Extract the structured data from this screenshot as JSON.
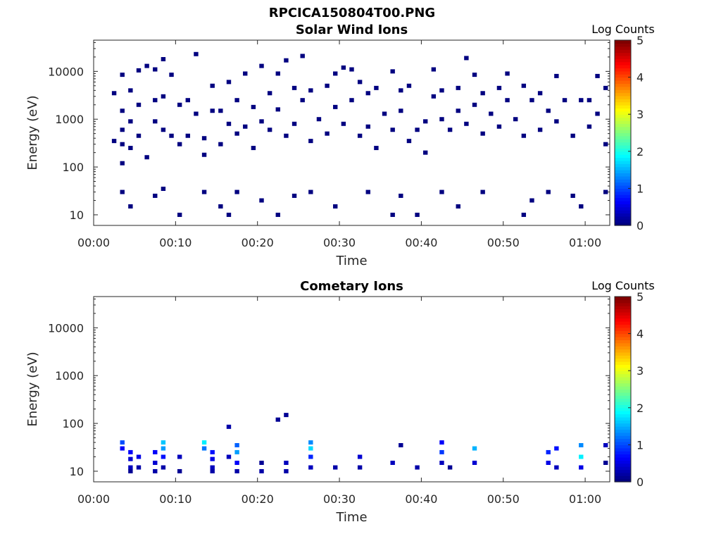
{
  "figure_title": "RPCICA150804T00.PNG",
  "chart_data": [
    {
      "type": "heatmap",
      "title": "Solar Wind Ions",
      "xlabel": "Time",
      "ylabel": "Energy (eV)",
      "y_scale": "log",
      "xlim": [
        "00:00",
        "01:03"
      ],
      "ylim": [
        6,
        45000
      ],
      "x_tick_labels": [
        "00:00",
        "00:10",
        "00:20",
        "00:30",
        "00:40",
        "00:50",
        "01:00"
      ],
      "y_tick_labels": [
        "10",
        "100",
        "1000",
        "10000"
      ],
      "colorbar": {
        "label": "Log Counts",
        "range": [
          0,
          5
        ],
        "tick_labels": [
          "0",
          "1",
          "2",
          "3",
          "4",
          "5"
        ],
        "colormap": "jet"
      },
      "grid": false,
      "points_note": "sparse single-count pixels (log counts ~0) scattered across all energies",
      "points": [
        {
          "t": "00:02",
          "e": 3500,
          "c": 0
        },
        {
          "t": "00:02",
          "e": 350,
          "c": 0
        },
        {
          "t": "00:03",
          "e": 8500,
          "c": 0
        },
        {
          "t": "00:03",
          "e": 1500,
          "c": 0
        },
        {
          "t": "00:03",
          "e": 600,
          "c": 0
        },
        {
          "t": "00:03",
          "e": 300,
          "c": 0
        },
        {
          "t": "00:03",
          "e": 120,
          "c": 0
        },
        {
          "t": "00:04",
          "e": 4000,
          "c": 0
        },
        {
          "t": "00:04",
          "e": 900,
          "c": 0
        },
        {
          "t": "00:04",
          "e": 250,
          "c": 0
        },
        {
          "t": "00:05",
          "e": 10500,
          "c": 0
        },
        {
          "t": "00:05",
          "e": 2000,
          "c": 0
        },
        {
          "t": "00:05",
          "e": 450,
          "c": 0
        },
        {
          "t": "00:06",
          "e": 13000,
          "c": 0
        },
        {
          "t": "00:06",
          "e": 160,
          "c": 0
        },
        {
          "t": "00:07",
          "e": 11000,
          "c": 0
        },
        {
          "t": "00:07",
          "e": 2500,
          "c": 0
        },
        {
          "t": "00:07",
          "e": 900,
          "c": 0
        },
        {
          "t": "00:08",
          "e": 18000,
          "c": 0
        },
        {
          "t": "00:08",
          "e": 3000,
          "c": 0
        },
        {
          "t": "00:08",
          "e": 600,
          "c": 0
        },
        {
          "t": "00:09",
          "e": 8500,
          "c": 0
        },
        {
          "t": "00:09",
          "e": 450,
          "c": 0
        },
        {
          "t": "00:10",
          "e": 2000,
          "c": 0
        },
        {
          "t": "00:10",
          "e": 300,
          "c": 0
        },
        {
          "t": "00:11",
          "e": 450,
          "c": 0
        },
        {
          "t": "00:11",
          "e": 2500,
          "c": 0
        },
        {
          "t": "00:12",
          "e": 23000,
          "c": 0
        },
        {
          "t": "00:12",
          "e": 1300,
          "c": 0
        },
        {
          "t": "00:13",
          "e": 400,
          "c": 0
        },
        {
          "t": "00:13",
          "e": 180,
          "c": 0
        },
        {
          "t": "00:14",
          "e": 5000,
          "c": 0
        },
        {
          "t": "00:14",
          "e": 1500,
          "c": 0
        },
        {
          "t": "00:15",
          "e": 1500,
          "c": 0
        },
        {
          "t": "00:15",
          "e": 300,
          "c": 0
        },
        {
          "t": "00:16",
          "e": 6000,
          "c": 0
        },
        {
          "t": "00:16",
          "e": 800,
          "c": 0
        },
        {
          "t": "00:17",
          "e": 2500,
          "c": 0
        },
        {
          "t": "00:17",
          "e": 500,
          "c": 0
        },
        {
          "t": "00:18",
          "e": 9000,
          "c": 0
        },
        {
          "t": "00:18",
          "e": 700,
          "c": 0
        },
        {
          "t": "00:19",
          "e": 1800,
          "c": 0
        },
        {
          "t": "00:19",
          "e": 250,
          "c": 0
        },
        {
          "t": "00:20",
          "e": 13000,
          "c": 0
        },
        {
          "t": "00:20",
          "e": 900,
          "c": 0
        },
        {
          "t": "00:21",
          "e": 3500,
          "c": 0
        },
        {
          "t": "00:21",
          "e": 600,
          "c": 0
        },
        {
          "t": "00:22",
          "e": 9000,
          "c": 0
        },
        {
          "t": "00:22",
          "e": 1600,
          "c": 0
        },
        {
          "t": "00:23",
          "e": 17000,
          "c": 0
        },
        {
          "t": "00:23",
          "e": 450,
          "c": 0
        },
        {
          "t": "00:24",
          "e": 4500,
          "c": 0
        },
        {
          "t": "00:24",
          "e": 800,
          "c": 0
        },
        {
          "t": "00:25",
          "e": 21000,
          "c": 0
        },
        {
          "t": "00:25",
          "e": 2500,
          "c": 0
        },
        {
          "t": "00:26",
          "e": 4000,
          "c": 0
        },
        {
          "t": "00:26",
          "e": 350,
          "c": 0
        },
        {
          "t": "00:27",
          "e": 1000,
          "c": 0
        },
        {
          "t": "00:28",
          "e": 5000,
          "c": 0
        },
        {
          "t": "00:28",
          "e": 500,
          "c": 0
        },
        {
          "t": "00:29",
          "e": 9000,
          "c": 0
        },
        {
          "t": "00:29",
          "e": 1800,
          "c": 0
        },
        {
          "t": "00:30",
          "e": 12000,
          "c": 0
        },
        {
          "t": "00:30",
          "e": 800,
          "c": 0
        },
        {
          "t": "00:31",
          "e": 11000,
          "c": 0
        },
        {
          "t": "00:31",
          "e": 2500,
          "c": 0
        },
        {
          "t": "00:32",
          "e": 6000,
          "c": 0
        },
        {
          "t": "00:32",
          "e": 450,
          "c": 0
        },
        {
          "t": "00:33",
          "e": 3500,
          "c": 0
        },
        {
          "t": "00:33",
          "e": 700,
          "c": 0
        },
        {
          "t": "00:34",
          "e": 4500,
          "c": 0
        },
        {
          "t": "00:34",
          "e": 250,
          "c": 0
        },
        {
          "t": "00:35",
          "e": 1300,
          "c": 0
        },
        {
          "t": "00:36",
          "e": 10000,
          "c": 0
        },
        {
          "t": "00:36",
          "e": 600,
          "c": 0
        },
        {
          "t": "00:37",
          "e": 4000,
          "c": 0
        },
        {
          "t": "00:37",
          "e": 1500,
          "c": 0
        },
        {
          "t": "00:38",
          "e": 5000,
          "c": 0
        },
        {
          "t": "00:38",
          "e": 350,
          "c": 0
        },
        {
          "t": "00:39",
          "e": 600,
          "c": 0
        },
        {
          "t": "00:40",
          "e": 900,
          "c": 0
        },
        {
          "t": "00:40",
          "e": 200,
          "c": 0
        },
        {
          "t": "00:41",
          "e": 11000,
          "c": 0
        },
        {
          "t": "00:41",
          "e": 3000,
          "c": 0
        },
        {
          "t": "00:42",
          "e": 4000,
          "c": 0
        },
        {
          "t": "00:42",
          "e": 1000,
          "c": 0
        },
        {
          "t": "00:43",
          "e": 600,
          "c": 0
        },
        {
          "t": "00:44",
          "e": 4500,
          "c": 0
        },
        {
          "t": "00:44",
          "e": 1500,
          "c": 0
        },
        {
          "t": "00:45",
          "e": 19000,
          "c": 0
        },
        {
          "t": "00:45",
          "e": 800,
          "c": 0
        },
        {
          "t": "00:46",
          "e": 8500,
          "c": 0
        },
        {
          "t": "00:46",
          "e": 2000,
          "c": 0
        },
        {
          "t": "00:47",
          "e": 3500,
          "c": 0
        },
        {
          "t": "00:47",
          "e": 500,
          "c": 0
        },
        {
          "t": "00:48",
          "e": 1300,
          "c": 0
        },
        {
          "t": "00:49",
          "e": 4500,
          "c": 0
        },
        {
          "t": "00:49",
          "e": 700,
          "c": 0
        },
        {
          "t": "00:50",
          "e": 9000,
          "c": 0
        },
        {
          "t": "00:50",
          "e": 2500,
          "c": 0
        },
        {
          "t": "00:51",
          "e": 1000,
          "c": 0
        },
        {
          "t": "00:52",
          "e": 5000,
          "c": 0
        },
        {
          "t": "00:52",
          "e": 450,
          "c": 0
        },
        {
          "t": "00:53",
          "e": 2500,
          "c": 0
        },
        {
          "t": "00:54",
          "e": 3500,
          "c": 0
        },
        {
          "t": "00:54",
          "e": 600,
          "c": 0
        },
        {
          "t": "00:55",
          "e": 1500,
          "c": 0
        },
        {
          "t": "00:56",
          "e": 8000,
          "c": 0
        },
        {
          "t": "00:56",
          "e": 900,
          "c": 0
        },
        {
          "t": "00:57",
          "e": 2500,
          "c": 0
        },
        {
          "t": "00:58",
          "e": 450,
          "c": 0
        },
        {
          "t": "00:59",
          "e": 2500,
          "c": 0
        },
        {
          "t": "01:00",
          "e": 2500,
          "c": 0
        },
        {
          "t": "01:00",
          "e": 700,
          "c": 0
        },
        {
          "t": "01:01",
          "e": 8000,
          "c": 0
        },
        {
          "t": "01:01",
          "e": 1300,
          "c": 0
        },
        {
          "t": "01:02",
          "e": 4500,
          "c": 0
        },
        {
          "t": "01:02",
          "e": 300,
          "c": 0
        },
        {
          "t": "00:03",
          "e": 30,
          "c": 0
        },
        {
          "t": "00:04",
          "e": 15,
          "c": 0
        },
        {
          "t": "00:07",
          "e": 25,
          "c": 0
        },
        {
          "t": "00:08",
          "e": 35,
          "c": 0
        },
        {
          "t": "00:10",
          "e": 10,
          "c": 0
        },
        {
          "t": "00:13",
          "e": 30,
          "c": 0
        },
        {
          "t": "00:15",
          "e": 15,
          "c": 0
        },
        {
          "t": "00:16",
          "e": 10,
          "c": 0
        },
        {
          "t": "00:17",
          "e": 30,
          "c": 0
        },
        {
          "t": "00:20",
          "e": 20,
          "c": 0
        },
        {
          "t": "00:22",
          "e": 10,
          "c": 0
        },
        {
          "t": "00:24",
          "e": 25,
          "c": 0
        },
        {
          "t": "00:26",
          "e": 30,
          "c": 0
        },
        {
          "t": "00:29",
          "e": 15,
          "c": 0
        },
        {
          "t": "00:33",
          "e": 30,
          "c": 0
        },
        {
          "t": "00:36",
          "e": 10,
          "c": 0
        },
        {
          "t": "00:37",
          "e": 25,
          "c": 0
        },
        {
          "t": "00:39",
          "e": 10,
          "c": 0
        },
        {
          "t": "00:42",
          "e": 30,
          "c": 0
        },
        {
          "t": "00:44",
          "e": 15,
          "c": 0
        },
        {
          "t": "00:47",
          "e": 30,
          "c": 0
        },
        {
          "t": "00:52",
          "e": 10,
          "c": 0
        },
        {
          "t": "00:53",
          "e": 20,
          "c": 0
        },
        {
          "t": "00:55",
          "e": 30,
          "c": 0
        },
        {
          "t": "00:58",
          "e": 25,
          "c": 0
        },
        {
          "t": "00:59",
          "e": 15,
          "c": 0
        },
        {
          "t": "01:02",
          "e": 30,
          "c": 0
        }
      ]
    },
    {
      "type": "heatmap",
      "title": "Cometary Ions",
      "xlabel": "Time",
      "ylabel": "Energy (eV)",
      "y_scale": "log",
      "xlim": [
        "00:00",
        "01:03"
      ],
      "ylim": [
        6,
        45000
      ],
      "x_tick_labels": [
        "00:00",
        "00:10",
        "00:20",
        "00:30",
        "00:40",
        "00:50",
        "01:00"
      ],
      "y_tick_labels": [
        "10",
        "100",
        "1000",
        "10000"
      ],
      "colorbar": {
        "label": "Log Counts",
        "range": [
          0,
          5
        ],
        "tick_labels": [
          "0",
          "1",
          "2",
          "3",
          "4",
          "5"
        ],
        "colormap": "jet"
      },
      "grid": false,
      "points": [
        {
          "t": "00:03",
          "e": 40,
          "c": 1.0
        },
        {
          "t": "00:03",
          "e": 30,
          "c": 0.6
        },
        {
          "t": "00:04",
          "e": 25,
          "c": 0.6
        },
        {
          "t": "00:04",
          "e": 18,
          "c": 0.4
        },
        {
          "t": "00:04",
          "e": 12,
          "c": 0.3
        },
        {
          "t": "00:04",
          "e": 10,
          "c": 0.1
        },
        {
          "t": "00:05",
          "e": 20,
          "c": 0.5
        },
        {
          "t": "00:05",
          "e": 12,
          "c": 0.2
        },
        {
          "t": "00:07",
          "e": 15,
          "c": 0.4
        },
        {
          "t": "00:07",
          "e": 10,
          "c": 0.2
        },
        {
          "t": "00:07",
          "e": 25,
          "c": 0.6
        },
        {
          "t": "00:08",
          "e": 40,
          "c": 1.6
        },
        {
          "t": "00:08",
          "e": 30,
          "c": 1.4
        },
        {
          "t": "00:08",
          "e": 20,
          "c": 0.7
        },
        {
          "t": "00:08",
          "e": 12,
          "c": 0.2
        },
        {
          "t": "00:10",
          "e": 20,
          "c": 0.3
        },
        {
          "t": "00:10",
          "e": 10,
          "c": 0.1
        },
        {
          "t": "00:13",
          "e": 40,
          "c": 1.8
        },
        {
          "t": "00:13",
          "e": 30,
          "c": 1.2
        },
        {
          "t": "00:14",
          "e": 25,
          "c": 0.7
        },
        {
          "t": "00:14",
          "e": 18,
          "c": 0.5
        },
        {
          "t": "00:14",
          "e": 12,
          "c": 0.3
        },
        {
          "t": "00:14",
          "e": 10,
          "c": 0.2
        },
        {
          "t": "00:16",
          "e": 20,
          "c": 0.3
        },
        {
          "t": "00:16",
          "e": 85,
          "c": 0.2
        },
        {
          "t": "00:17",
          "e": 35,
          "c": 1.1
        },
        {
          "t": "00:17",
          "e": 25,
          "c": 1.4
        },
        {
          "t": "00:17",
          "e": 15,
          "c": 0.6
        },
        {
          "t": "00:17",
          "e": 10,
          "c": 0.2
        },
        {
          "t": "00:20",
          "e": 15,
          "c": 0.1
        },
        {
          "t": "00:20",
          "e": 10,
          "c": 0.2
        },
        {
          "t": "00:22",
          "e": 120,
          "c": 0.1
        },
        {
          "t": "00:23",
          "e": 150,
          "c": 0.1
        },
        {
          "t": "00:23",
          "e": 15,
          "c": 0.3
        },
        {
          "t": "00:23",
          "e": 10,
          "c": 0.2
        },
        {
          "t": "00:26",
          "e": 40,
          "c": 1.3
        },
        {
          "t": "00:26",
          "e": 30,
          "c": 1.7
        },
        {
          "t": "00:26",
          "e": 20,
          "c": 0.8
        },
        {
          "t": "00:26",
          "e": 12,
          "c": 0.3
        },
        {
          "t": "00:29",
          "e": 12,
          "c": 0.2
        },
        {
          "t": "00:32",
          "e": 20,
          "c": 0.4
        },
        {
          "t": "00:32",
          "e": 12,
          "c": 0.2
        },
        {
          "t": "00:36",
          "e": 15,
          "c": 0.3
        },
        {
          "t": "00:37",
          "e": 35,
          "c": 0.1
        },
        {
          "t": "00:39",
          "e": 12,
          "c": 0.2
        },
        {
          "t": "00:42",
          "e": 40,
          "c": 0.6
        },
        {
          "t": "00:42",
          "e": 25,
          "c": 0.9
        },
        {
          "t": "00:42",
          "e": 15,
          "c": 0.3
        },
        {
          "t": "00:43",
          "e": 12,
          "c": 0.1
        },
        {
          "t": "00:46",
          "e": 30,
          "c": 1.5
        },
        {
          "t": "00:46",
          "e": 15,
          "c": 0.4
        },
        {
          "t": "00:55",
          "e": 15,
          "c": 0.5
        },
        {
          "t": "00:55",
          "e": 25,
          "c": 0.8
        },
        {
          "t": "00:56",
          "e": 30,
          "c": 0.7
        },
        {
          "t": "00:56",
          "e": 12,
          "c": 0.3
        },
        {
          "t": "00:59",
          "e": 35,
          "c": 1.3
        },
        {
          "t": "00:59",
          "e": 20,
          "c": 1.8
        },
        {
          "t": "00:59",
          "e": 12,
          "c": 0.5
        },
        {
          "t": "01:02",
          "e": 35,
          "c": 0.3
        },
        {
          "t": "01:02",
          "e": 15,
          "c": 0.1
        }
      ]
    }
  ]
}
